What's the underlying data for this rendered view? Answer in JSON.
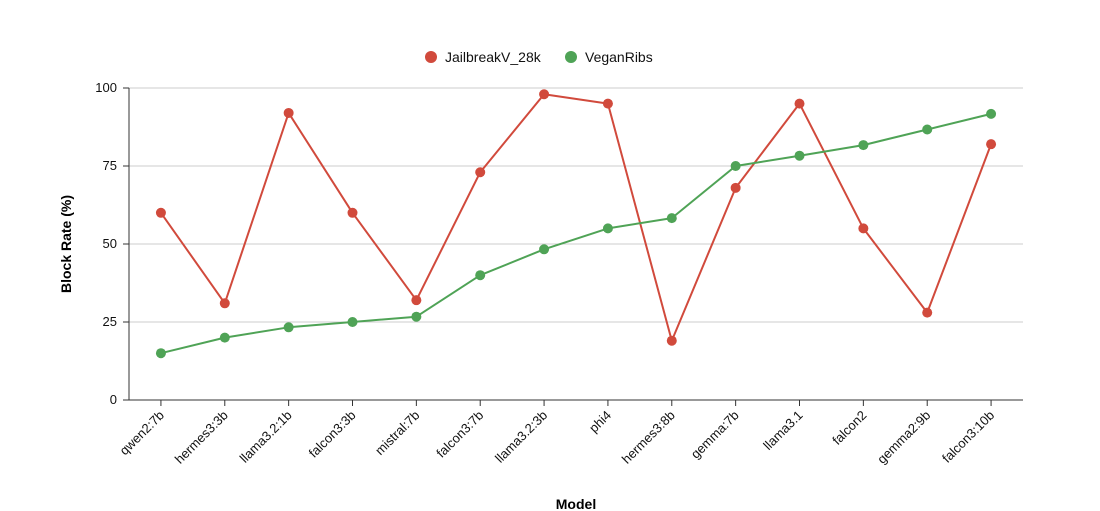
{
  "chart_data": {
    "type": "line",
    "title": "",
    "xlabel": "Model",
    "ylabel": "Block Rate (%)",
    "ylim": [
      0,
      100
    ],
    "yticks": [
      0,
      25,
      50,
      75,
      100
    ],
    "grid": true,
    "legend_position": "top-center",
    "categories": [
      "qwen2:7b",
      "hermes3:3b",
      "llama3.2:1b",
      "falcon3:3b",
      "mistral:7b",
      "falcon3:7b",
      "llama3.2:3b",
      "phi4",
      "hermes3:8b",
      "gemma:7b",
      "llama3.1",
      "falcon2",
      "gemma2:9b",
      "falcon3:10b"
    ],
    "series": [
      {
        "name": "JailbreakV_28k",
        "color": "#d14a3c",
        "values": [
          60,
          31,
          92,
          60,
          32,
          73,
          98,
          95,
          19,
          68,
          95,
          55,
          28,
          82
        ]
      },
      {
        "name": "VeganRibs",
        "color": "#4fa356",
        "values": [
          15,
          20,
          23.3,
          25,
          26.7,
          40,
          48.3,
          55,
          58.3,
          75,
          78.3,
          81.7,
          86.7,
          91.7
        ]
      }
    ]
  }
}
